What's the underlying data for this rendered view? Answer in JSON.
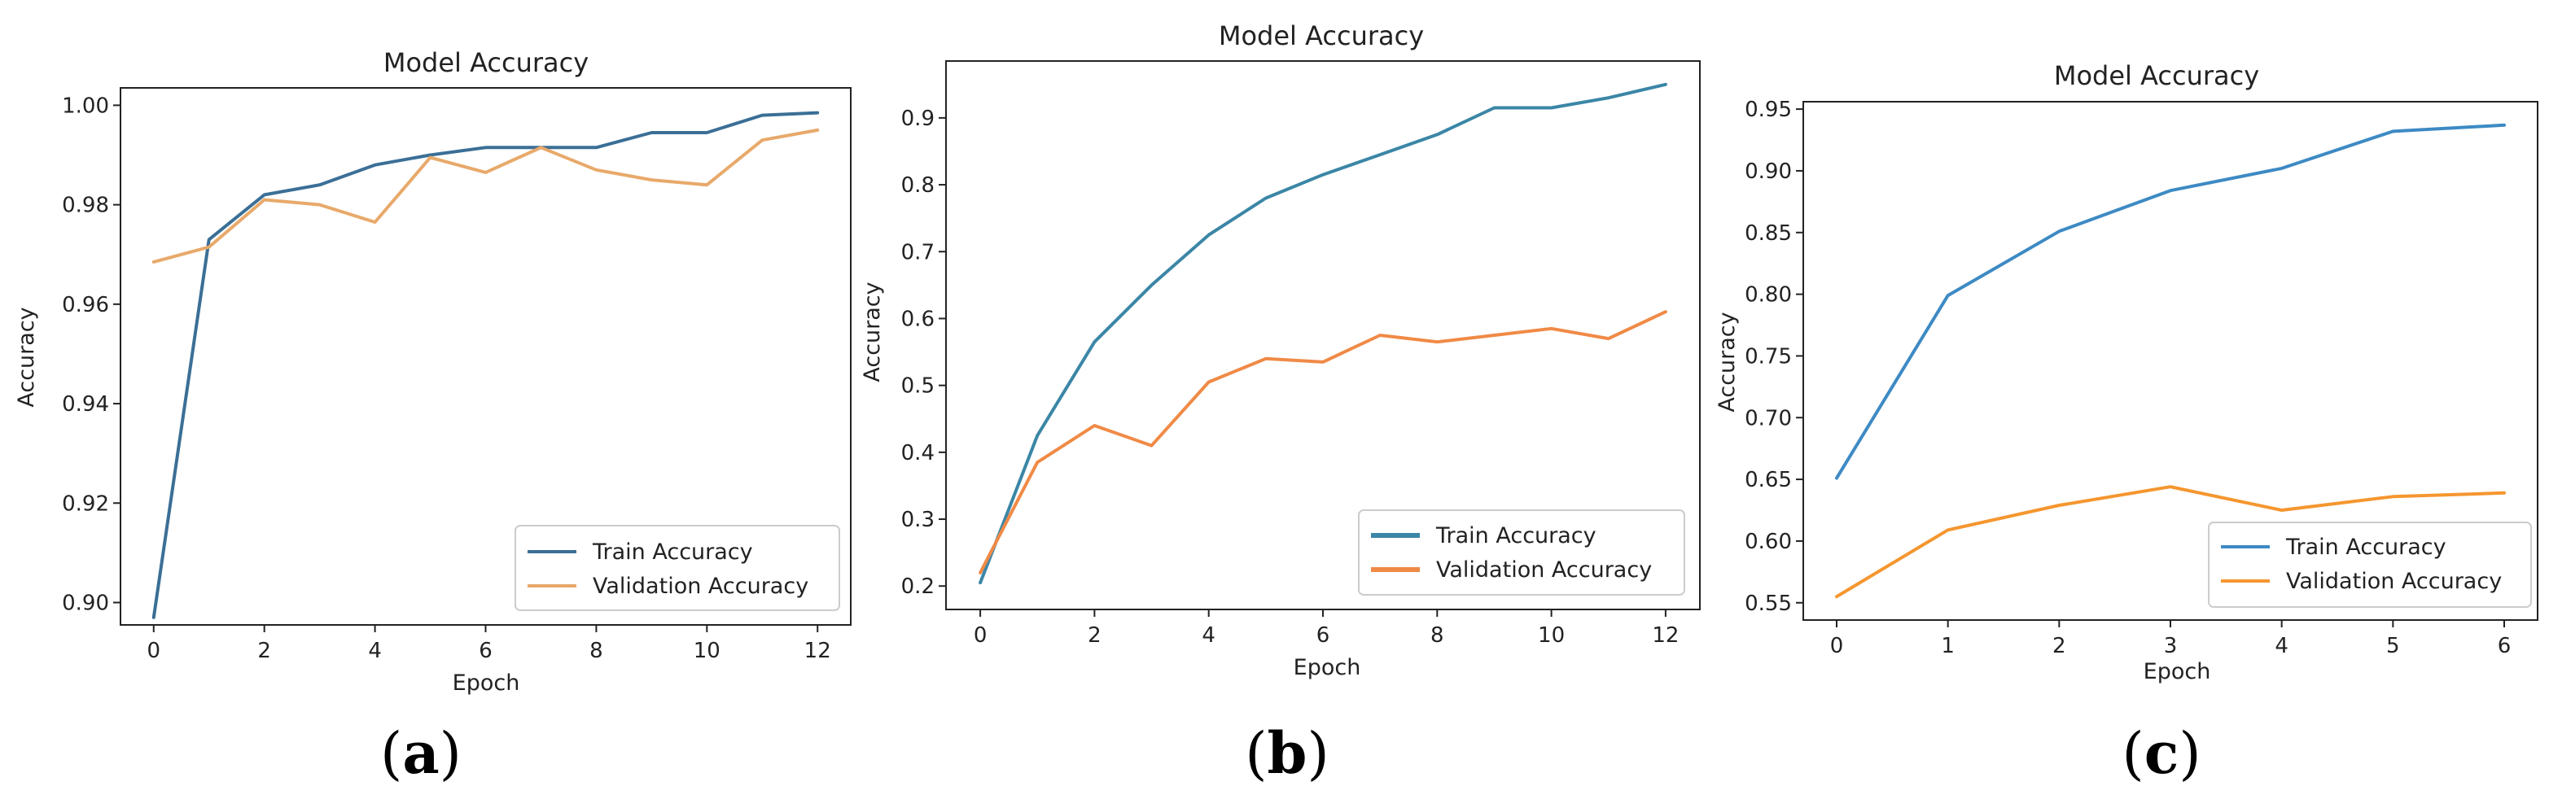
{
  "charts": [
    {
      "id": "a",
      "caption_open": "(",
      "caption_letter": "a",
      "caption_close": ")",
      "chart_data": {
        "type": "line",
        "title": "Model Accuracy",
        "xlabel": "Epoch",
        "ylabel": "Accuracy",
        "xlim": [
          -0.6,
          12.6
        ],
        "ylim": [
          0.8955,
          1.0035
        ],
        "xticks": [
          0,
          2,
          4,
          6,
          8,
          10,
          12
        ],
        "yticks": [
          0.9,
          0.92,
          0.94,
          0.96,
          0.98,
          1.0
        ],
        "ytick_decimals": 2,
        "legend_loc": "lower right",
        "x": [
          0,
          1,
          2,
          3,
          4,
          5,
          6,
          7,
          8,
          9,
          10,
          11,
          12
        ],
        "series": [
          {
            "name": "Train Accuracy",
            "color": "#3b6f96",
            "values": [
              0.897,
              0.973,
              0.982,
              0.984,
              0.988,
              0.99,
              0.9915,
              0.9915,
              0.9915,
              0.9945,
              0.9945,
              0.998,
              0.9985
            ]
          },
          {
            "name": "Validation Accuracy",
            "color": "#e8a96a",
            "values": [
              0.9685,
              0.9715,
              0.981,
              0.98,
              0.9765,
              0.9895,
              0.9865,
              0.9915,
              0.987,
              0.985,
              0.984,
              0.993,
              0.995
            ]
          }
        ]
      }
    },
    {
      "id": "b",
      "caption_open": "(",
      "caption_letter": "b",
      "caption_close": ")",
      "chart_data": {
        "type": "line",
        "title": "Model Accuracy",
        "xlabel": "Epoch",
        "ylabel": "Accuracy",
        "xlim": [
          -0.6,
          12.6
        ],
        "ylim": [
          0.165,
          0.985
        ],
        "xticks": [
          0,
          2,
          4,
          6,
          8,
          10,
          12
        ],
        "yticks": [
          0.2,
          0.3,
          0.4,
          0.5,
          0.6,
          0.7,
          0.8,
          0.9
        ],
        "ytick_decimals": 1,
        "legend_loc": "lower right",
        "x": [
          0,
          1,
          2,
          3,
          4,
          5,
          6,
          7,
          8,
          9,
          10,
          11,
          12
        ],
        "series": [
          {
            "name": "Train Accuracy",
            "color": "#3b86a6",
            "values": [
              0.205,
              0.425,
              0.565,
              0.65,
              0.725,
              0.78,
              0.815,
              0.845,
              0.875,
              0.915,
              0.915,
              0.93,
              0.95
            ]
          },
          {
            "name": "Validation Accuracy",
            "color": "#f08a46",
            "values": [
              0.22,
              0.385,
              0.44,
              0.41,
              0.505,
              0.54,
              0.535,
              0.575,
              0.565,
              0.575,
              0.585,
              0.57,
              0.61
            ]
          }
        ]
      }
    },
    {
      "id": "c",
      "caption_open": "(",
      "caption_letter": "c",
      "caption_close": ")",
      "chart_data": {
        "type": "line",
        "title": "Model Accuracy",
        "xlabel": "Epoch",
        "ylabel": "Accuracy",
        "xlim": [
          -0.3,
          6.3
        ],
        "ylim": [
          0.536,
          0.956
        ],
        "xticks": [
          0,
          1,
          2,
          3,
          4,
          5,
          6
        ],
        "yticks": [
          0.55,
          0.6,
          0.65,
          0.7,
          0.75,
          0.8,
          0.85,
          0.9,
          0.95
        ],
        "ytick_decimals": 2,
        "legend_loc": "lower right",
        "x": [
          0,
          1,
          2,
          3,
          4,
          5,
          6
        ],
        "series": [
          {
            "name": "Train Accuracy",
            "color": "#3d8ac4",
            "values": [
              0.651,
              0.799,
              0.851,
              0.884,
              0.902,
              0.932,
              0.937
            ]
          },
          {
            "name": "Validation Accuracy",
            "color": "#f5962f",
            "values": [
              0.555,
              0.609,
              0.629,
              0.644,
              0.625,
              0.636,
              0.639
            ]
          }
        ]
      }
    }
  ]
}
